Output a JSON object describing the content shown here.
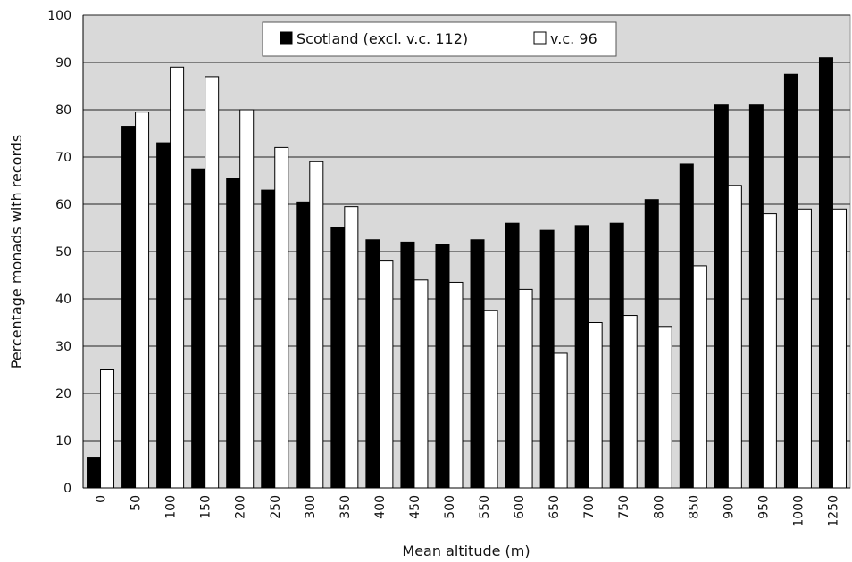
{
  "chart_data": {
    "type": "bar",
    "categories": [
      "0",
      "50",
      "100",
      "150",
      "200",
      "250",
      "300",
      "350",
      "400",
      "450",
      "500",
      "550",
      "600",
      "650",
      "700",
      "750",
      "800",
      "850",
      "900",
      "950",
      "1000",
      "1250"
    ],
    "series": [
      {
        "name": "Scotland (excl. v.c. 112)",
        "color": "#000000",
        "values": [
          6.5,
          76.5,
          73,
          67.5,
          65.5,
          63,
          60.5,
          55,
          52.5,
          52,
          51.5,
          52.5,
          56,
          54.5,
          55.5,
          56,
          61,
          68.5,
          81,
          81,
          87.5,
          91
        ]
      },
      {
        "name": "v.c. 96",
        "color": "#ffffff",
        "values": [
          25,
          79.5,
          89,
          87,
          80,
          72,
          69,
          59.5,
          48,
          44,
          43.5,
          37.5,
          42,
          28.5,
          35,
          36.5,
          34,
          47,
          64,
          58,
          59,
          59
        ]
      }
    ],
    "xlabel": "Mean altitude (m)",
    "ylabel": "Percentage monads with records",
    "ylim": [
      0,
      100
    ],
    "yticks": [
      "0",
      "10",
      "20",
      "30",
      "40",
      "50",
      "60",
      "70",
      "80",
      "90",
      "100"
    ],
    "grid": true,
    "legend": "top-center",
    "plot_background": "#d9d9d9"
  }
}
